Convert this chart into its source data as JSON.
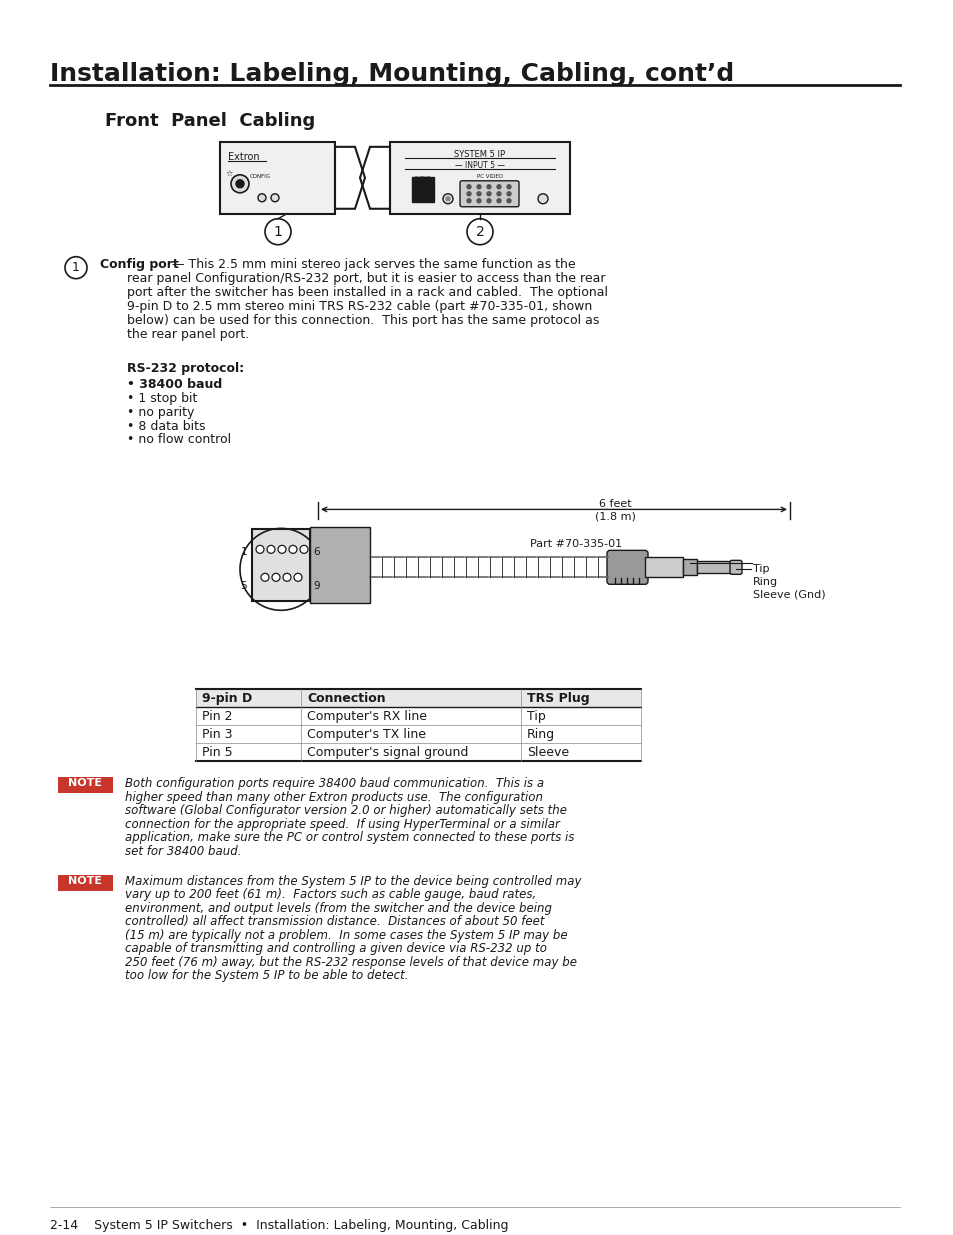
{
  "page_bg": "#ffffff",
  "text_color": "#1a1a1a",
  "title": "Installation: Labeling, Mounting, Cabling, cont’d",
  "section_title": "Front  Panel  Cabling",
  "para1_label": "Config port",
  "protocol_title": "RS-232 protocol:",
  "protocol_items": [
    [
      "38400 baud",
      true
    ],
    [
      "1 stop bit",
      false
    ],
    [
      "no parity",
      false
    ],
    [
      "8 data bits",
      false
    ],
    [
      "no flow control",
      false
    ]
  ],
  "cable_label": "Part #70-335-01",
  "tip_label": "Tip",
  "ring_label": "Ring",
  "sleeve_label": "Sleeve (Gnd)",
  "dim_label1": "6 feet",
  "dim_label2": "(1.8 m)",
  "table_headers": [
    "9-pin D",
    "Connection",
    "TRS Plug"
  ],
  "table_rows": [
    [
      "Pin 2",
      "Computer's RX line",
      "Tip"
    ],
    [
      "Pin 3",
      "Computer's TX line",
      "Ring"
    ],
    [
      "Pin 5",
      "Computer's signal ground",
      "Sleeve"
    ]
  ],
  "note1_text": "Both configuration ports require 38400 baud communication.  This is a\nhigher speed than many other Extron products use.  The configuration\nsoftware (Global Configurator version 2.0 or higher) automatically sets the\nconnection for the appropriate speed.  If using HyperTerminal or a similar\napplication, make sure the PC or control system connected to these ports is\nset for 38400 baud.",
  "note2_text": "Maximum distances from the System 5 IP to the device being controlled may\nvary up to 200 feet (61 m).  Factors such as cable gauge, baud rates,\nenvironment, and output levels (from the switcher and the device being\ncontrolled) all affect transmission distance.  Distances of about 50 feet\n(15 m) are typically not a problem.  In some cases the System 5 IP may be\ncapable of transmitting and controlling a given device via RS-232 up to\n250 feet (76 m) away, but the RS-232 response levels of that device may be\ntoo low for the System 5 IP to be able to detect.",
  "footer_text": "2-14    System 5 IP Switchers  •  Installation: Labeling, Mounting, Cabling",
  "note_bg": "#c8352a",
  "note_text_color": "#ffffff",
  "body_line1": " — This 2.5 mm mini stereo jack serves the same function as the",
  "body_lines": [
    "rear panel Configuration/RS-232 port, but it is easier to access than the rear",
    "port after the switcher has been installed in a rack and cabled.  The optional",
    "9-pin D to 2.5 mm stereo mini TRS RS-232 cable (part #70-335-01, shown",
    "below) can be used for this connection.  This port has the same protocol as",
    "the rear panel port."
  ]
}
